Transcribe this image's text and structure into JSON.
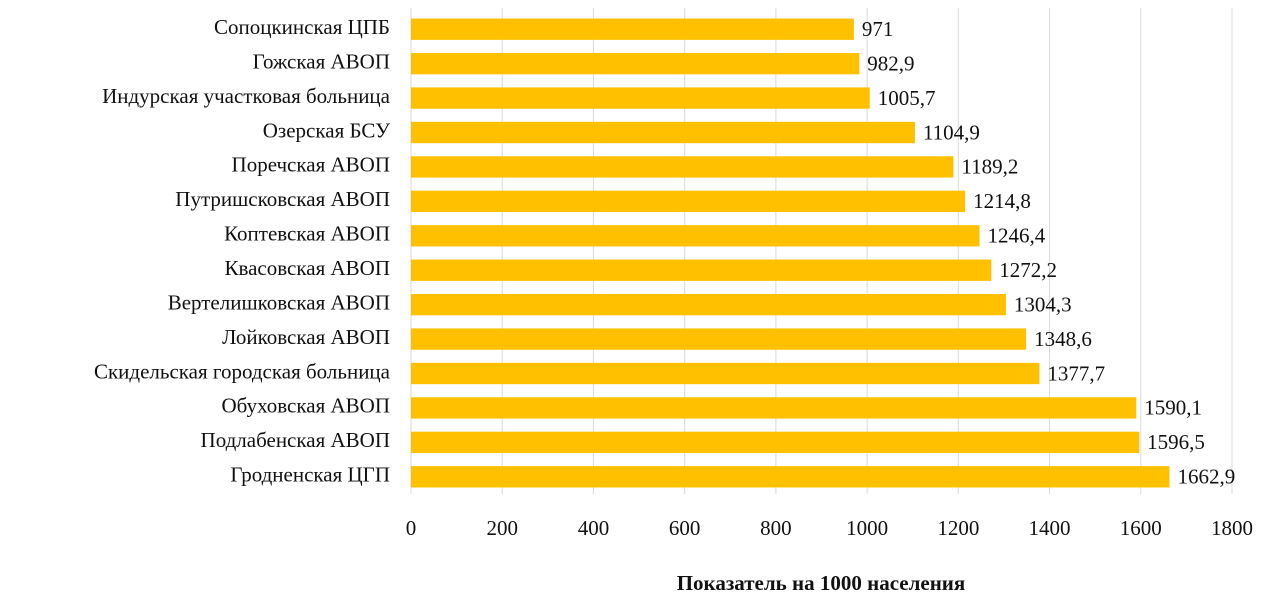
{
  "chart_data": {
    "type": "barh",
    "categories": [
      "Сопоцкинская ЦПБ",
      "Гожская АВОП",
      "Индурская участковая больница",
      "Озерская БСУ",
      "Поречская АВОП",
      "Путришсковская АВОП",
      "Коптевская АВОП",
      "Квасовская АВОП",
      "Вертелишковская АВОП",
      "Лойковская АВОП",
      "Скидельская городская больница",
      "Обуховская АВОП",
      "Подлабенская АВОП",
      "Гродненская ЦГП"
    ],
    "values": [
      971,
      982.9,
      1005.7,
      1104.9,
      1189.2,
      1214.8,
      1246.4,
      1272.2,
      1304.3,
      1348.6,
      1377.7,
      1590.1,
      1596.5,
      1662.9
    ],
    "value_labels": [
      "971",
      "982,9",
      "1005,7",
      "1104,9",
      "1189,2",
      "1214,8",
      "1246,4",
      "1272,2",
      "1304,3",
      "1348,6",
      "1377,7",
      "1590,1",
      "1596,5",
      "1662,9"
    ],
    "color": "#ffc000",
    "xlabel": "Показатель на 1000 населения",
    "xlim": [
      0,
      1800
    ],
    "xticks": [
      0,
      200,
      400,
      600,
      800,
      1000,
      1200,
      1400,
      1600,
      1800
    ],
    "grid": true
  }
}
